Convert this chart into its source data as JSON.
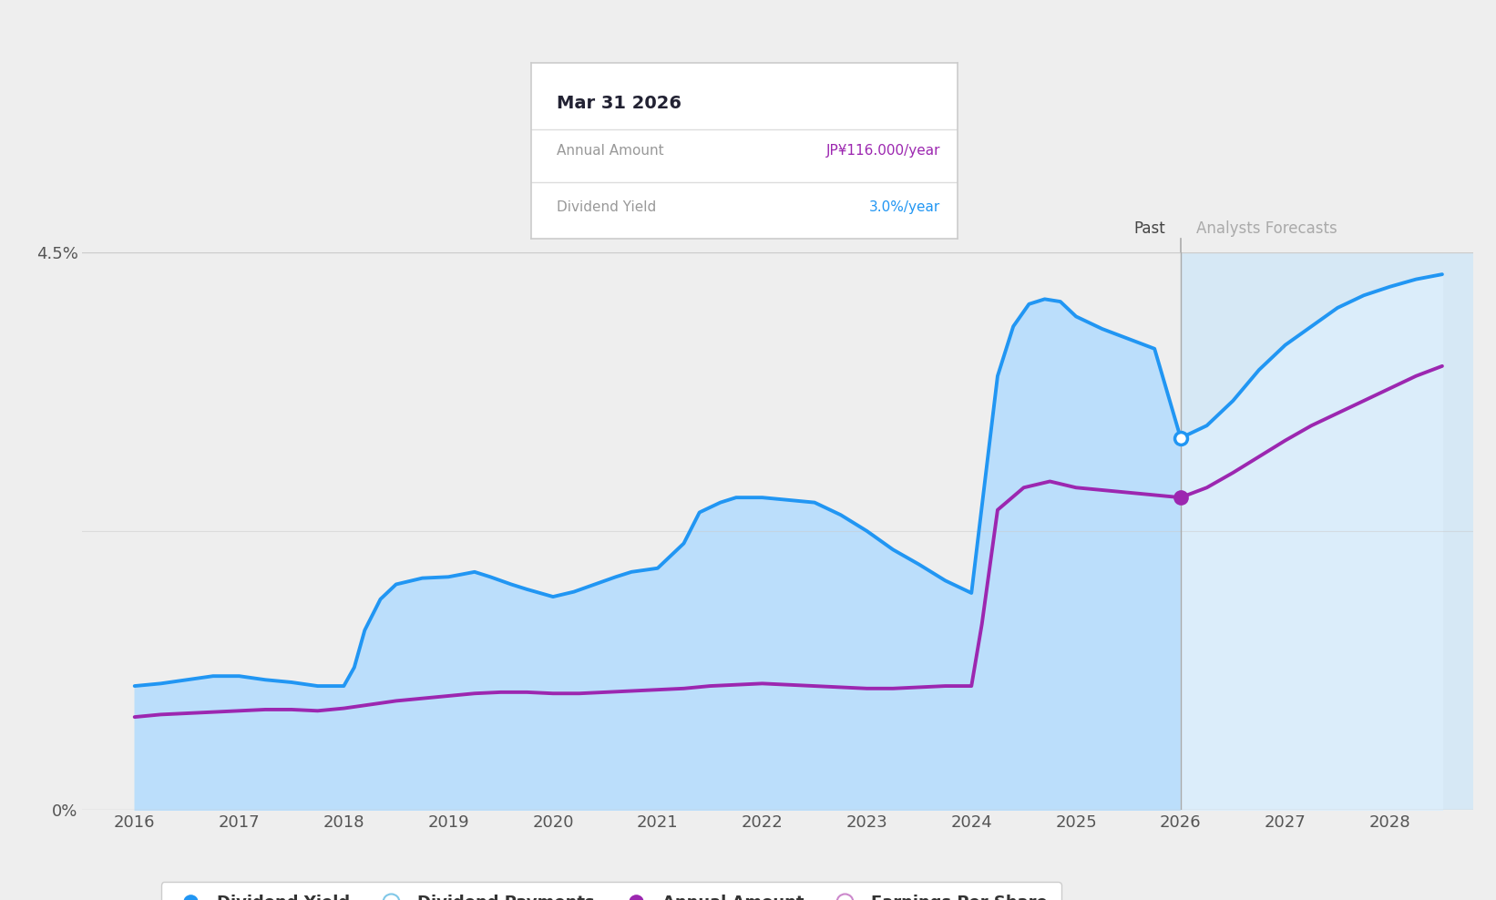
{
  "background_color": "#eeeeee",
  "plot_bg_color": "#eeeeee",
  "ylim": [
    0,
    4.5
  ],
  "xlim": [
    2015.5,
    2028.8
  ],
  "xticks": [
    2016,
    2017,
    2018,
    2019,
    2020,
    2021,
    2022,
    2023,
    2024,
    2025,
    2026,
    2027,
    2028
  ],
  "forecast_start": 2026.0,
  "past_label": "Past",
  "forecast_label": "Analysts Forecasts",
  "dividend_yield_color": "#2196F3",
  "annual_amount_color": "#9C27B0",
  "fill_past_color": "#BBDEFB",
  "fill_forecast_color": "#DCEEFB",
  "forecast_bg_color": "#D6E8F5",
  "grid_color": "#cccccc",
  "tooltip": {
    "title": "Mar 31 2026",
    "rows": [
      {
        "label": "Annual Amount",
        "value": "JP¥116.000/year",
        "value_color": "#9C27B0"
      },
      {
        "label": "Dividend Yield",
        "value": "3.0%/year",
        "value_color": "#2196F3"
      }
    ]
  },
  "dividend_yield_x": [
    2016.0,
    2016.25,
    2016.5,
    2016.75,
    2017.0,
    2017.25,
    2017.5,
    2017.75,
    2018.0,
    2018.1,
    2018.2,
    2018.35,
    2018.5,
    2018.75,
    2019.0,
    2019.25,
    2019.4,
    2019.6,
    2019.75,
    2020.0,
    2020.2,
    2020.4,
    2020.6,
    2020.75,
    2021.0,
    2021.25,
    2021.4,
    2021.6,
    2021.75,
    2022.0,
    2022.25,
    2022.5,
    2022.75,
    2023.0,
    2023.25,
    2023.5,
    2023.75,
    2024.0,
    2024.05,
    2024.15,
    2024.25,
    2024.4,
    2024.55,
    2024.7,
    2024.85,
    2025.0,
    2025.25,
    2025.5,
    2025.75,
    2026.0,
    2026.25,
    2026.5,
    2026.75,
    2027.0,
    2027.25,
    2027.5,
    2027.75,
    2028.0,
    2028.25,
    2028.5
  ],
  "dividend_yield_y": [
    1.0,
    1.02,
    1.05,
    1.08,
    1.08,
    1.05,
    1.03,
    1.0,
    1.0,
    1.15,
    1.45,
    1.7,
    1.82,
    1.87,
    1.88,
    1.92,
    1.88,
    1.82,
    1.78,
    1.72,
    1.76,
    1.82,
    1.88,
    1.92,
    1.95,
    2.15,
    2.4,
    2.48,
    2.52,
    2.52,
    2.5,
    2.48,
    2.38,
    2.25,
    2.1,
    1.98,
    1.85,
    1.75,
    2.1,
    2.8,
    3.5,
    3.9,
    4.08,
    4.12,
    4.1,
    3.98,
    3.88,
    3.8,
    3.72,
    3.0,
    3.1,
    3.3,
    3.55,
    3.75,
    3.9,
    4.05,
    4.15,
    4.22,
    4.28,
    4.32
  ],
  "annual_amount_x": [
    2016.0,
    2016.25,
    2016.5,
    2016.75,
    2017.0,
    2017.25,
    2017.5,
    2017.75,
    2018.0,
    2018.25,
    2018.5,
    2018.75,
    2019.0,
    2019.25,
    2019.5,
    2019.75,
    2020.0,
    2020.25,
    2020.5,
    2020.75,
    2021.0,
    2021.25,
    2021.5,
    2021.75,
    2022.0,
    2022.25,
    2022.5,
    2022.75,
    2023.0,
    2023.25,
    2023.5,
    2023.75,
    2024.0,
    2024.1,
    2024.25,
    2024.5,
    2024.75,
    2025.0,
    2025.25,
    2025.5,
    2025.75,
    2026.0,
    2026.25,
    2026.5,
    2026.75,
    2027.0,
    2027.25,
    2027.5,
    2027.75,
    2028.0,
    2028.25,
    2028.5
  ],
  "annual_amount_y": [
    0.75,
    0.77,
    0.78,
    0.79,
    0.8,
    0.81,
    0.81,
    0.8,
    0.82,
    0.85,
    0.88,
    0.9,
    0.92,
    0.94,
    0.95,
    0.95,
    0.94,
    0.94,
    0.95,
    0.96,
    0.97,
    0.98,
    1.0,
    1.01,
    1.02,
    1.01,
    1.0,
    0.99,
    0.98,
    0.98,
    0.99,
    1.0,
    1.0,
    1.5,
    2.42,
    2.6,
    2.65,
    2.6,
    2.58,
    2.56,
    2.54,
    2.52,
    2.6,
    2.72,
    2.85,
    2.98,
    3.1,
    3.2,
    3.3,
    3.4,
    3.5,
    3.58
  ],
  "marker_x": 2026.0,
  "marker_yield_y": 3.0,
  "marker_amount_y": 2.52
}
